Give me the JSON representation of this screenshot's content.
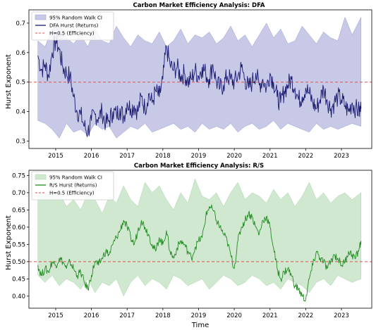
{
  "chart_data": [
    {
      "type": "line",
      "title": "Carbon Market Efficiency Analysis: DFA",
      "xlabel": "",
      "ylabel": "Hurst Exponent",
      "xlim": [
        2014.25,
        2023.85
      ],
      "ylim": [
        0.275,
        0.745
      ],
      "x_ticks": [
        "2015",
        "2016",
        "2017",
        "2018",
        "2019",
        "2020",
        "2021",
        "2022",
        "2023"
      ],
      "y_ticks": [
        "0.3",
        "0.4",
        "0.5",
        "0.6",
        "0.7"
      ],
      "legend": {
        "position": "top-left",
        "entries": [
          "95% Random Walk CI",
          "DFA Hurst (Returns)",
          "H=0.5 (Efficiency)"
        ]
      },
      "reference_line": 0.5,
      "colors": {
        "line": "#191970",
        "band": "#c7c9e6",
        "band_edge": "#9a9fd3",
        "reference": "#e05050"
      },
      "series": [
        {
          "name": "DFA Hurst (Returns)",
          "x": [
            2014.5,
            2014.6,
            2014.7,
            2014.8,
            2014.9,
            2015.0,
            2015.1,
            2015.2,
            2015.3,
            2015.4,
            2015.5,
            2015.6,
            2015.7,
            2015.8,
            2015.9,
            2016.0,
            2016.1,
            2016.2,
            2016.3,
            2016.4,
            2016.5,
            2016.6,
            2016.7,
            2016.8,
            2016.9,
            2017.0,
            2017.1,
            2017.2,
            2017.3,
            2017.4,
            2017.5,
            2017.6,
            2017.7,
            2017.8,
            2017.9,
            2018.0,
            2018.1,
            2018.2,
            2018.3,
            2018.4,
            2018.5,
            2018.6,
            2018.7,
            2018.8,
            2018.9,
            2019.0,
            2019.1,
            2019.2,
            2019.3,
            2019.4,
            2019.5,
            2019.6,
            2019.7,
            2019.8,
            2019.9,
            2020.0,
            2020.1,
            2020.2,
            2020.3,
            2020.4,
            2020.5,
            2020.6,
            2020.7,
            2020.8,
            2020.9,
            2021.0,
            2021.1,
            2021.2,
            2021.3,
            2021.4,
            2021.5,
            2021.6,
            2021.7,
            2021.8,
            2021.9,
            2022.0,
            2022.1,
            2022.2,
            2022.3,
            2022.4,
            2022.5,
            2022.6,
            2022.7,
            2022.8,
            2022.9,
            2023.0,
            2023.1,
            2023.2,
            2023.3,
            2023.4,
            2023.5,
            2023.55
          ],
          "values": [
            0.59,
            0.54,
            0.56,
            0.52,
            0.6,
            0.64,
            0.61,
            0.55,
            0.53,
            0.52,
            0.45,
            0.4,
            0.39,
            0.35,
            0.33,
            0.37,
            0.39,
            0.38,
            0.4,
            0.36,
            0.37,
            0.4,
            0.39,
            0.41,
            0.38,
            0.43,
            0.41,
            0.42,
            0.4,
            0.45,
            0.41,
            0.46,
            0.43,
            0.47,
            0.45,
            0.51,
            0.62,
            0.56,
            0.54,
            0.55,
            0.52,
            0.53,
            0.5,
            0.51,
            0.54,
            0.52,
            0.55,
            0.53,
            0.51,
            0.56,
            0.5,
            0.48,
            0.49,
            0.52,
            0.51,
            0.5,
            0.52,
            0.55,
            0.51,
            0.48,
            0.5,
            0.53,
            0.49,
            0.51,
            0.48,
            0.53,
            0.5,
            0.45,
            0.43,
            0.47,
            0.49,
            0.51,
            0.48,
            0.44,
            0.45,
            0.48,
            0.46,
            0.43,
            0.41,
            0.44,
            0.48,
            0.44,
            0.41,
            0.43,
            0.45,
            0.44,
            0.42,
            0.4,
            0.43,
            0.41,
            0.4,
            0.41
          ]
        }
      ],
      "ci_band": {
        "x": [
          2014.5,
          2014.7,
          2014.9,
          2015.1,
          2015.3,
          2015.5,
          2015.7,
          2015.9,
          2016.1,
          2016.3,
          2016.5,
          2016.7,
          2016.9,
          2017.1,
          2017.3,
          2017.5,
          2017.7,
          2017.9,
          2018.1,
          2018.3,
          2018.5,
          2018.7,
          2018.9,
          2019.1,
          2019.3,
          2019.5,
          2019.7,
          2019.9,
          2020.1,
          2020.3,
          2020.5,
          2020.7,
          2020.9,
          2021.1,
          2021.3,
          2021.5,
          2021.7,
          2021.9,
          2022.1,
          2022.3,
          2022.5,
          2022.7,
          2022.9,
          2023.1,
          2023.3,
          2023.55
        ],
        "upper": [
          0.64,
          0.62,
          0.68,
          0.69,
          0.65,
          0.63,
          0.66,
          0.62,
          0.68,
          0.64,
          0.63,
          0.69,
          0.65,
          0.62,
          0.66,
          0.64,
          0.63,
          0.67,
          0.62,
          0.64,
          0.68,
          0.63,
          0.66,
          0.65,
          0.67,
          0.63,
          0.65,
          0.69,
          0.64,
          0.66,
          0.62,
          0.66,
          0.7,
          0.65,
          0.68,
          0.63,
          0.64,
          0.69,
          0.66,
          0.63,
          0.67,
          0.65,
          0.64,
          0.72,
          0.66,
          0.72
        ],
        "lower": [
          0.37,
          0.36,
          0.34,
          0.31,
          0.36,
          0.33,
          0.34,
          0.32,
          0.36,
          0.34,
          0.35,
          0.31,
          0.33,
          0.35,
          0.34,
          0.36,
          0.33,
          0.34,
          0.35,
          0.36,
          0.34,
          0.35,
          0.33,
          0.36,
          0.34,
          0.35,
          0.34,
          0.36,
          0.33,
          0.35,
          0.36,
          0.34,
          0.35,
          0.37,
          0.34,
          0.36,
          0.35,
          0.34,
          0.33,
          0.36,
          0.34,
          0.35,
          0.34,
          0.35,
          0.36,
          0.35
        ]
      }
    },
    {
      "type": "line",
      "title": "Carbon Market Efficiency Analysis: R/S",
      "xlabel": "Time",
      "ylabel": "Hurst Exponent",
      "xlim": [
        2014.25,
        2023.85
      ],
      "ylim": [
        0.365,
        0.765
      ],
      "x_ticks": [
        "2015",
        "2016",
        "2017",
        "2018",
        "2019",
        "2020",
        "2021",
        "2022",
        "2023"
      ],
      "y_ticks": [
        "0.40",
        "0.45",
        "0.50",
        "0.55",
        "0.60",
        "0.65",
        "0.70",
        "0.75"
      ],
      "legend": {
        "position": "top-left",
        "entries": [
          "95% Random Walk CI",
          "R/S Hurst (Returns)",
          "H=0.5 (Efficiency)"
        ]
      },
      "reference_line": 0.5,
      "colors": {
        "line": "#228b22",
        "band": "#cfe8cf",
        "band_edge": "#a9d6a9",
        "reference": "#e05050"
      },
      "series": [
        {
          "name": "R/S Hurst (Returns)",
          "x": [
            2014.5,
            2014.6,
            2014.7,
            2014.8,
            2014.9,
            2015.0,
            2015.1,
            2015.2,
            2015.3,
            2015.4,
            2015.5,
            2015.6,
            2015.7,
            2015.8,
            2015.9,
            2016.0,
            2016.1,
            2016.2,
            2016.3,
            2016.4,
            2016.5,
            2016.6,
            2016.7,
            2016.8,
            2016.9,
            2017.0,
            2017.1,
            2017.2,
            2017.3,
            2017.4,
            2017.5,
            2017.6,
            2017.7,
            2017.8,
            2017.9,
            2018.0,
            2018.1,
            2018.2,
            2018.3,
            2018.4,
            2018.5,
            2018.6,
            2018.7,
            2018.8,
            2018.9,
            2019.0,
            2019.1,
            2019.2,
            2019.3,
            2019.4,
            2019.5,
            2019.6,
            2019.7,
            2019.8,
            2019.9,
            2020.0,
            2020.1,
            2020.2,
            2020.3,
            2020.4,
            2020.5,
            2020.6,
            2020.7,
            2020.8,
            2020.9,
            2021.0,
            2021.1,
            2021.2,
            2021.3,
            2021.4,
            2021.5,
            2021.6,
            2021.7,
            2021.8,
            2021.9,
            2022.0,
            2022.1,
            2022.2,
            2022.3,
            2022.4,
            2022.5,
            2022.6,
            2022.7,
            2022.8,
            2022.9,
            2023.0,
            2023.1,
            2023.2,
            2023.3,
            2023.4,
            2023.5,
            2023.55
          ],
          "values": [
            0.49,
            0.46,
            0.48,
            0.47,
            0.5,
            0.49,
            0.51,
            0.5,
            0.48,
            0.5,
            0.48,
            0.46,
            0.47,
            0.44,
            0.42,
            0.46,
            0.5,
            0.49,
            0.51,
            0.53,
            0.52,
            0.55,
            0.57,
            0.59,
            0.62,
            0.6,
            0.57,
            0.55,
            0.59,
            0.62,
            0.6,
            0.58,
            0.55,
            0.53,
            0.57,
            0.55,
            0.59,
            0.53,
            0.51,
            0.54,
            0.56,
            0.55,
            0.53,
            0.51,
            0.54,
            0.56,
            0.57,
            0.63,
            0.66,
            0.65,
            0.62,
            0.6,
            0.58,
            0.56,
            0.52,
            0.48,
            0.56,
            0.6,
            0.62,
            0.64,
            0.63,
            0.6,
            0.58,
            0.62,
            0.63,
            0.6,
            0.54,
            0.48,
            0.45,
            0.47,
            0.48,
            0.46,
            0.43,
            0.42,
            0.4,
            0.39,
            0.45,
            0.49,
            0.53,
            0.51,
            0.5,
            0.48,
            0.5,
            0.52,
            0.51,
            0.49,
            0.5,
            0.53,
            0.52,
            0.51,
            0.54,
            0.56
          ]
        }
      ],
      "ci_band": {
        "x": [
          2014.5,
          2014.7,
          2014.9,
          2015.1,
          2015.3,
          2015.5,
          2015.7,
          2015.9,
          2016.1,
          2016.3,
          2016.5,
          2016.7,
          2016.9,
          2017.1,
          2017.3,
          2017.5,
          2017.7,
          2017.9,
          2018.1,
          2018.3,
          2018.5,
          2018.7,
          2018.9,
          2019.1,
          2019.3,
          2019.5,
          2019.7,
          2019.9,
          2020.1,
          2020.3,
          2020.5,
          2020.7,
          2020.9,
          2021.1,
          2021.3,
          2021.5,
          2021.7,
          2021.9,
          2022.1,
          2022.3,
          2022.5,
          2022.7,
          2022.9,
          2023.1,
          2023.3,
          2023.55
        ],
        "upper": [
          0.7,
          0.7,
          0.69,
          0.7,
          0.66,
          0.68,
          0.65,
          0.7,
          0.68,
          0.64,
          0.69,
          0.67,
          0.72,
          0.68,
          0.66,
          0.73,
          0.7,
          0.72,
          0.68,
          0.65,
          0.7,
          0.67,
          0.74,
          0.69,
          0.68,
          0.7,
          0.66,
          0.7,
          0.73,
          0.68,
          0.7,
          0.69,
          0.67,
          0.71,
          0.68,
          0.7,
          0.66,
          0.69,
          0.73,
          0.68,
          0.7,
          0.67,
          0.69,
          0.7,
          0.68,
          0.7
        ],
        "lower": [
          0.46,
          0.44,
          0.46,
          0.43,
          0.45,
          0.44,
          0.42,
          0.45,
          0.41,
          0.44,
          0.43,
          0.45,
          0.4,
          0.44,
          0.46,
          0.43,
          0.45,
          0.44,
          0.42,
          0.46,
          0.45,
          0.43,
          0.44,
          0.45,
          0.42,
          0.44,
          0.46,
          0.45,
          0.43,
          0.44,
          0.46,
          0.45,
          0.43,
          0.44,
          0.42,
          0.45,
          0.44,
          0.43,
          0.41,
          0.44,
          0.45,
          0.43,
          0.46,
          0.45,
          0.44,
          0.45
        ]
      }
    }
  ]
}
